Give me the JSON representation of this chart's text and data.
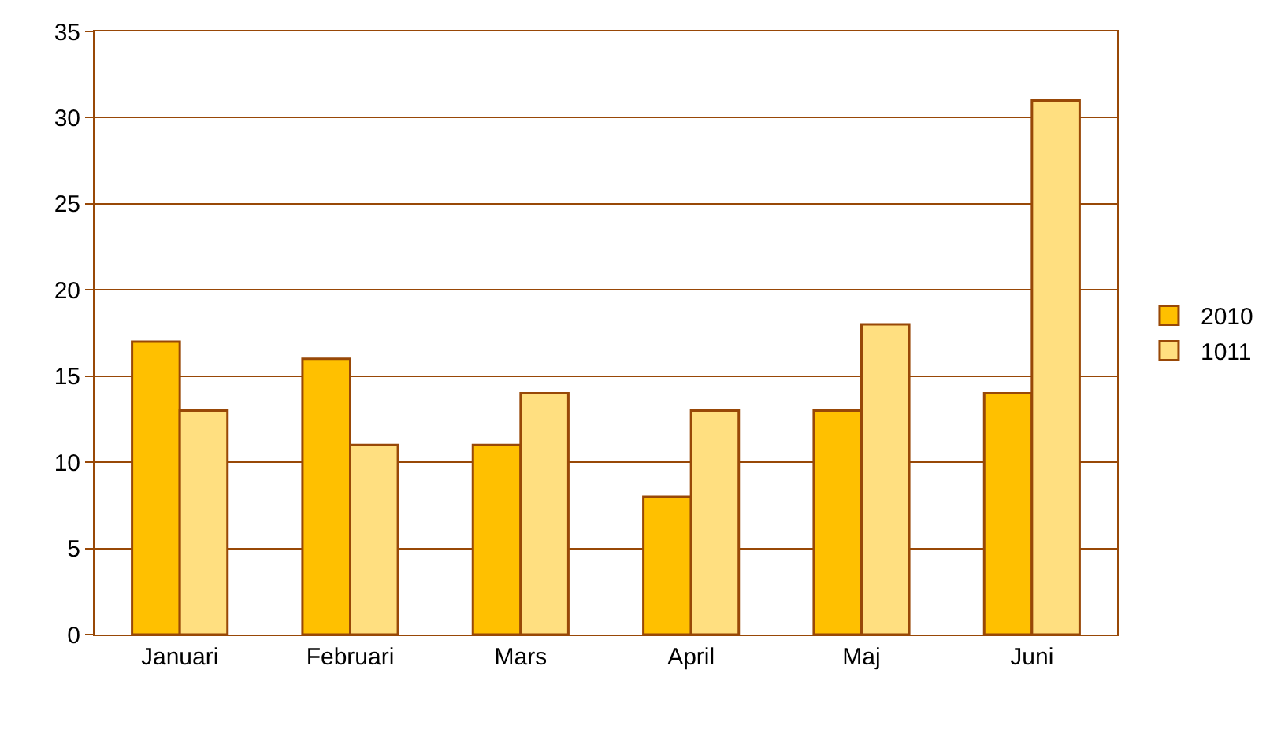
{
  "chart_data": {
    "type": "bar",
    "categories": [
      "Januari",
      "Februari",
      "Mars",
      "April",
      "Maj",
      "Juni"
    ],
    "series": [
      {
        "name": "2010",
        "color": "#ffc000",
        "values": [
          17,
          16,
          11,
          8,
          13,
          14
        ]
      },
      {
        "name": "1011",
        "color": "#ffdf80",
        "values": [
          13,
          11,
          14,
          13,
          18,
          31
        ]
      }
    ],
    "ylim": [
      0,
      35
    ],
    "yticks": [
      0,
      5,
      10,
      15,
      20,
      25,
      30,
      35
    ],
    "grid": "y",
    "legend": "right"
  }
}
